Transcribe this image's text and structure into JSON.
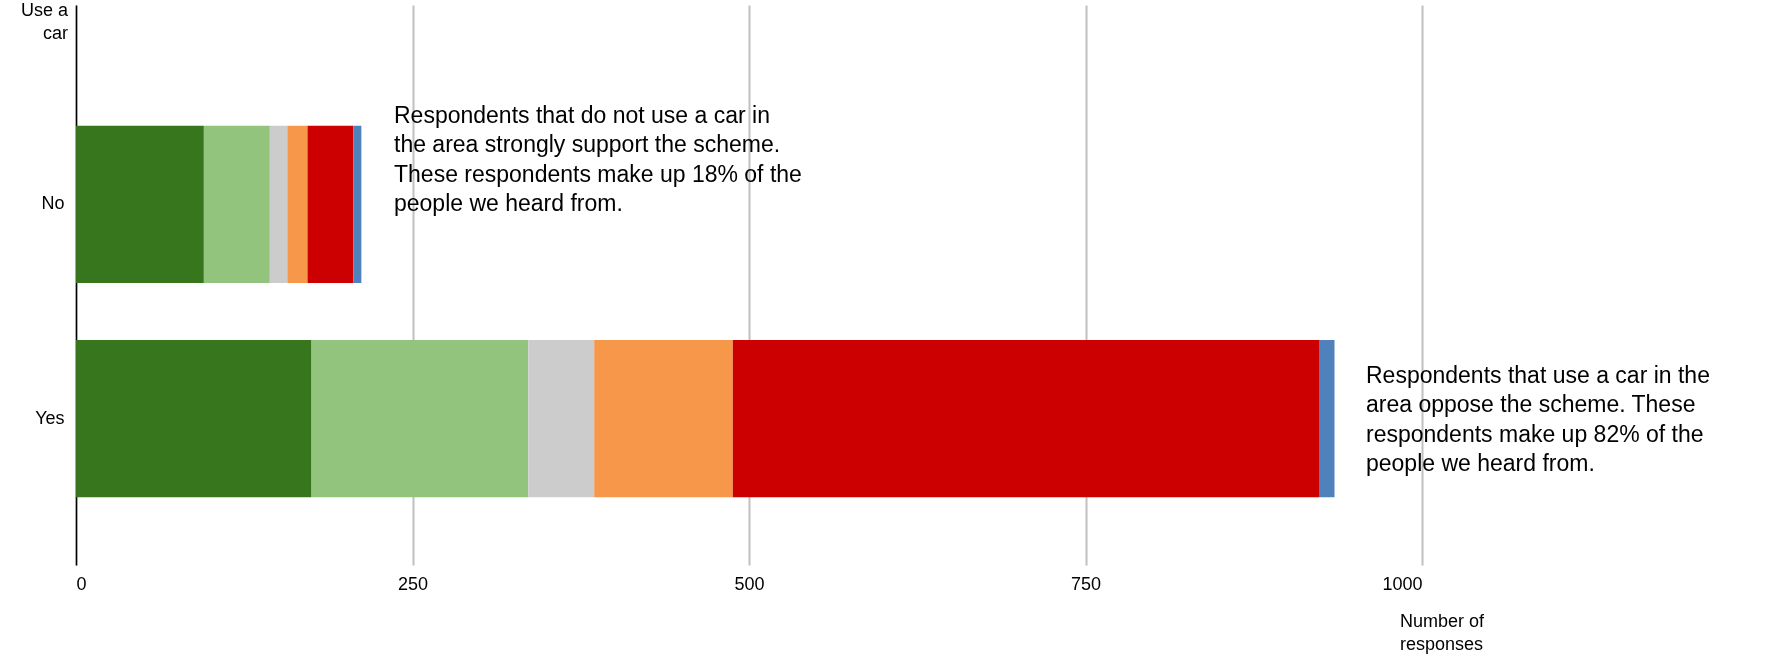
{
  "chart_data": {
    "type": "bar",
    "orientation": "horizontal",
    "stacked": true,
    "categories": [
      "No",
      "Yes"
    ],
    "series": [
      {
        "color": "#38761d",
        "values": [
          95,
          175
        ]
      },
      {
        "color": "#93c47d",
        "values": [
          49,
          161
        ]
      },
      {
        "color": "#cccccc",
        "values": [
          13,
          49
        ]
      },
      {
        "color": "#f6974a",
        "values": [
          15,
          103
        ]
      },
      {
        "color": "#cc0000",
        "values": [
          34,
          436
        ]
      },
      {
        "color": "#4f81bd",
        "values": [
          6,
          11
        ]
      }
    ],
    "ylabel": "Use a car",
    "xlabel": "Number of responses",
    "xlim": [
      0,
      1000
    ],
    "xticks": [
      0,
      250,
      500,
      750,
      1000
    ],
    "grid": "x",
    "legend": false,
    "annotations": [
      "Respondents that do not use a car in the area strongly support the scheme. These respondents make up 18% of the people we heard from.",
      "Respondents that use a car in the area oppose the scheme. These respondents make up 82% of the people we heard from."
    ]
  }
}
